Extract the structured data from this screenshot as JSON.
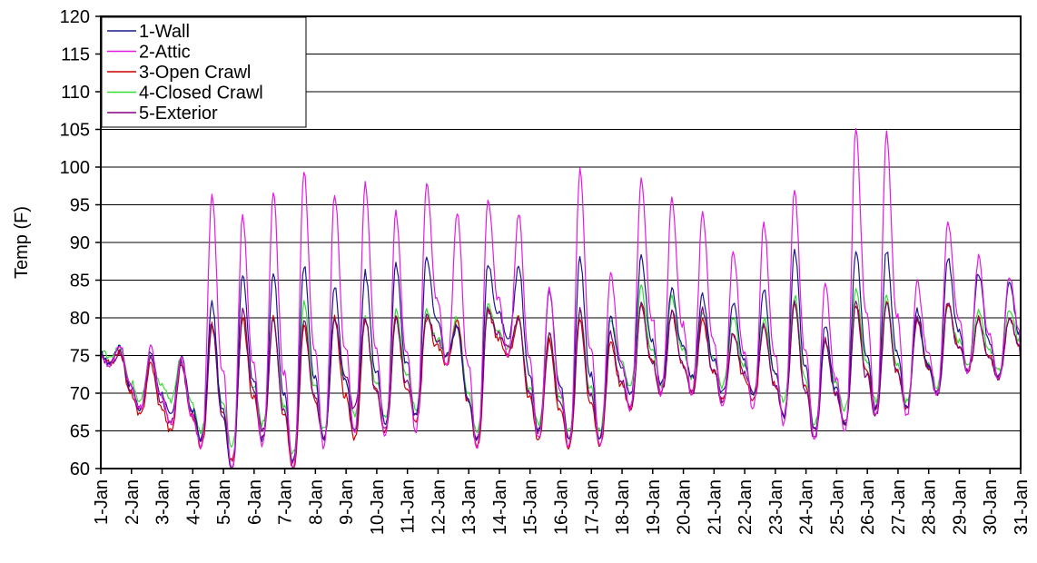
{
  "chart_data": {
    "type": "line",
    "title": "",
    "ylabel": "Temp (F)",
    "xlabel": "",
    "ylim": [
      60,
      120
    ],
    "y_ticks": [
      60,
      65,
      70,
      75,
      80,
      85,
      90,
      95,
      100,
      105,
      110,
      115,
      120
    ],
    "categories": [
      "1-Jan",
      "2-Jan",
      "3-Jan",
      "4-Jan",
      "5-Jan",
      "6-Jan",
      "7-Jan",
      "8-Jan",
      "9-Jan",
      "10-Jan",
      "11-Jan",
      "12-Jan",
      "13-Jan",
      "14-Jan",
      "15-Jan",
      "16-Jan",
      "17-Jan",
      "18-Jan",
      "19-Jan",
      "20-Jan",
      "21-Jan",
      "22-Jan",
      "23-Jan",
      "24-Jan",
      "25-Jan",
      "26-Jan",
      "27-Jan",
      "28-Jan",
      "29-Jan",
      "30-Jan",
      "31-Jan"
    ],
    "grid": "horizontal",
    "legend_position": "top-left",
    "series": [
      {
        "name": "1-Wall",
        "color": "#1a1a8c",
        "mins": [
          74,
          68,
          67,
          64,
          60,
          64,
          61,
          64,
          65,
          66,
          67,
          75,
          64,
          77,
          65,
          64,
          64,
          70,
          71,
          72,
          70,
          70,
          67,
          65,
          66,
          68,
          68,
          70,
          73,
          72,
          74
        ],
        "maxs": [
          76.5,
          75.5,
          75,
          82,
          86,
          86,
          87,
          84,
          86,
          87,
          88,
          79,
          87,
          87,
          84,
          88,
          80,
          88,
          84,
          83,
          82,
          84,
          89,
          79,
          89,
          89,
          81,
          88,
          86,
          85,
          84
        ]
      },
      {
        "name": "2-Attic",
        "color": "#e619e6",
        "mins": [
          73.5,
          68,
          66,
          63,
          60,
          63,
          60,
          63,
          65,
          64,
          65,
          74,
          63,
          75,
          64,
          63,
          63,
          68,
          70,
          70,
          68,
          68,
          66,
          64,
          65,
          67,
          67,
          70,
          73,
          72,
          74
        ],
        "maxs": [
          76.5,
          76,
          75,
          96.5,
          93.5,
          96.5,
          99.5,
          96.5,
          98,
          94,
          98,
          94,
          96,
          94,
          84,
          99.5,
          86,
          98.5,
          96,
          94,
          89,
          92.5,
          97,
          84.5,
          105,
          104.5,
          85,
          93,
          88,
          85.5,
          82
        ]
      },
      {
        "name": "3-Open Crawl",
        "color": "#cc0000",
        "mins": [
          74,
          67,
          65,
          63,
          61,
          64,
          60,
          64,
          64,
          65,
          66,
          74,
          63,
          75,
          64,
          63,
          63,
          68,
          70,
          70,
          69,
          69,
          67,
          65,
          66,
          68,
          68,
          70,
          73,
          72,
          74
        ],
        "maxs": [
          75.5,
          74,
          74,
          79,
          80,
          80,
          79,
          80,
          80,
          80,
          80,
          80,
          81,
          80,
          77,
          80,
          77,
          82,
          81,
          80,
          78,
          79,
          82,
          77,
          82,
          82,
          80,
          82,
          80,
          80,
          79
        ]
      },
      {
        "name": "4-Closed Crawl",
        "color": "#33dd33",
        "mins": [
          75,
          69,
          69,
          65,
          63,
          66,
          62,
          65,
          67,
          67,
          68,
          75,
          65,
          76,
          66,
          65,
          65,
          71,
          71,
          72,
          71,
          70,
          69,
          66,
          68,
          69,
          69,
          71,
          74,
          73,
          75
        ],
        "maxs": [
          76,
          75,
          75,
          79,
          80,
          80,
          82,
          80,
          80,
          81,
          81,
          80,
          82,
          80,
          78,
          81,
          80,
          84,
          83,
          81,
          80,
          80,
          83,
          77,
          84,
          83,
          80,
          82,
          81,
          81,
          81
        ]
      },
      {
        "name": "5-Exterior",
        "color": "#800080",
        "mins": [
          74,
          68,
          66,
          64,
          60,
          65,
          61,
          64,
          68,
          65,
          67,
          75,
          64,
          76,
          65,
          64,
          64,
          68,
          70,
          70,
          69,
          70,
          67,
          64,
          66,
          67,
          68,
          70,
          73,
          72,
          74
        ],
        "maxs": [
          75.5,
          74.5,
          74,
          79.5,
          81,
          80,
          80,
          80,
          80,
          80,
          80.5,
          79,
          81,
          80,
          78,
          81,
          78,
          82,
          81,
          81,
          78,
          79,
          82,
          77,
          82,
          82,
          80,
          82,
          80,
          80,
          79
        ]
      }
    ]
  }
}
